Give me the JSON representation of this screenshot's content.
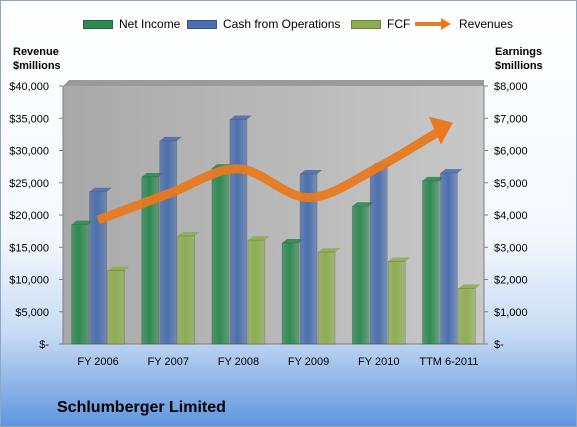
{
  "colors": {
    "net_income": "#2f8a52",
    "cash_from_operations": "#4c6fae",
    "fcf": "#8fae52",
    "revenues": "#e8791f",
    "plot_bg": "#b5b5b5"
  },
  "legend": {
    "net_income": "Net Income",
    "cash_from_operations": "Cash from Operations",
    "fcf": "FCF",
    "revenues": "Revenues"
  },
  "left_axis_title": [
    "Revenue",
    "$millions"
  ],
  "right_axis_title": [
    "Earnings",
    "$millions"
  ],
  "company": "Schlumberger Limited",
  "chart_data": {
    "type": "bar",
    "categories": [
      "FY 2006",
      "FY 2007",
      "FY 2008",
      "FY 2009",
      "FY 2010",
      "TTM 6-2011"
    ],
    "series": [
      {
        "name": "Net Income",
        "axis": "right",
        "values": [
          3700,
          5180,
          5450,
          3130,
          4270,
          5060
        ]
      },
      {
        "name": "Cash from Operations",
        "axis": "right",
        "values": [
          4720,
          6300,
          6960,
          5270,
          5480,
          5300
        ]
      },
      {
        "name": "FCF",
        "axis": "right",
        "values": [
          2280,
          3350,
          3220,
          2850,
          2560,
          1720
        ]
      },
      {
        "name": "Revenues",
        "axis": "left",
        "type": "line",
        "values": [
          19230,
          23280,
          27160,
          22700,
          27450,
          34000
        ]
      }
    ],
    "left_axis": {
      "ylim": [
        0,
        40000
      ],
      "ticks": [
        "$-",
        "$5,000",
        "$10,000",
        "$15,000",
        "$20,000",
        "$25,000",
        "$30,000",
        "$35,000",
        "$40,000"
      ]
    },
    "right_axis": {
      "ylim": [
        0,
        8000
      ],
      "ticks": [
        "$-",
        "$1,000",
        "$2,000",
        "$3,000",
        "$4,000",
        "$5,000",
        "$6,000",
        "$7,000",
        "$8,000"
      ]
    },
    "legend_position": "top",
    "grid": false
  }
}
